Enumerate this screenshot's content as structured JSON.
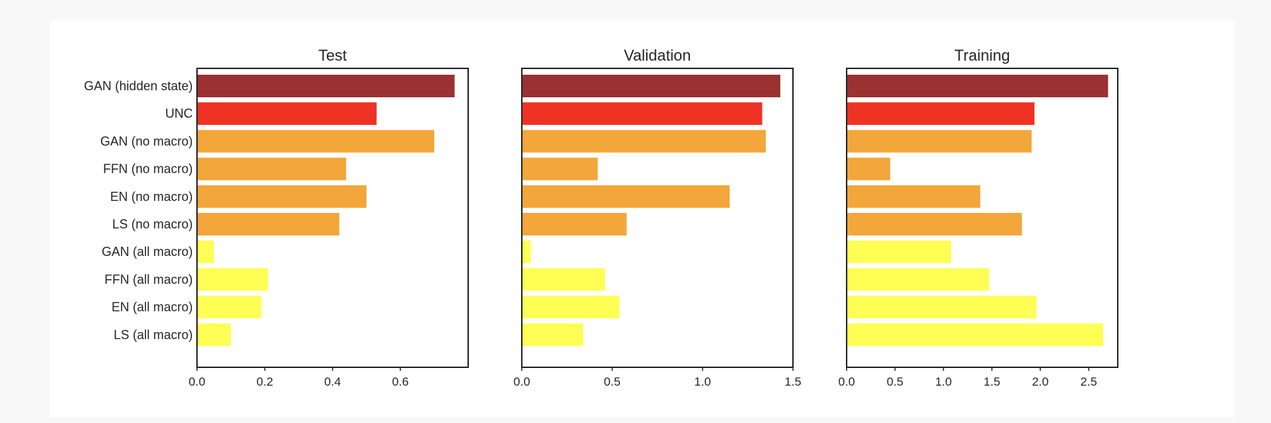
{
  "chart_data": {
    "type": "bar",
    "orientation": "horizontal",
    "grid": false,
    "categories": [
      "GAN (hidden state)",
      "UNC",
      "GAN (no macro)",
      "FFN (no macro)",
      "EN (no macro)",
      "LS (no macro)",
      "GAN (all macro)",
      "FFN (all macro)",
      "EN (all macro)",
      "LS (all macro)"
    ],
    "bar_colors": [
      "#9b3130",
      "#ee3325",
      "#f3a63a",
      "#f3a63a",
      "#f3a63a",
      "#f3a63a",
      "#fefe55",
      "#fefe55",
      "#fefe55",
      "#fefe55"
    ],
    "panels": [
      {
        "title": "Test",
        "xlim": [
          0,
          0.8
        ],
        "xticks": [
          0.0,
          0.2,
          0.4,
          0.6
        ],
        "xtick_labels": [
          "0.0",
          "0.2",
          "0.4",
          "0.6"
        ],
        "values": [
          0.76,
          0.53,
          0.7,
          0.44,
          0.5,
          0.42,
          0.05,
          0.21,
          0.19,
          0.1
        ]
      },
      {
        "title": "Validation",
        "xlim": [
          0,
          1.5
        ],
        "xticks": [
          0.0,
          0.5,
          1.0,
          1.5
        ],
        "xtick_labels": [
          "0.0",
          "0.5",
          "1.0",
          "1.5"
        ],
        "values": [
          1.43,
          1.33,
          1.35,
          0.42,
          1.15,
          0.58,
          0.05,
          0.46,
          0.54,
          0.34
        ]
      },
      {
        "title": "Training",
        "xlim": [
          0,
          2.8
        ],
        "xticks": [
          0.0,
          0.5,
          1.0,
          1.5,
          2.0,
          2.5
        ],
        "xtick_labels": [
          "0.0",
          "0.5",
          "1.0",
          "1.5",
          "2.0",
          "2.5"
        ],
        "values": [
          2.7,
          1.94,
          1.91,
          0.45,
          1.38,
          1.81,
          1.08,
          1.47,
          1.96,
          2.65
        ]
      }
    ]
  }
}
